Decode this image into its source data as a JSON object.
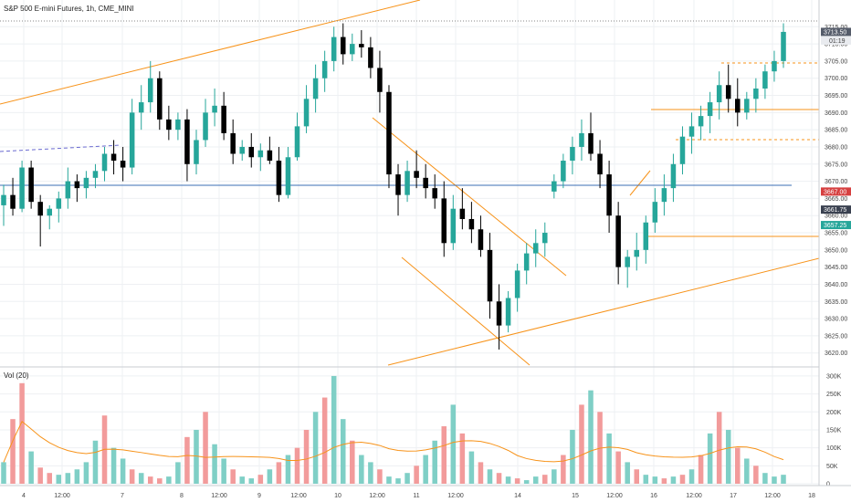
{
  "header": {
    "title": "S&P 500 E-mini Futures, 1h, CME_MINI",
    "volume_label": "Vol (20)"
  },
  "price_tags": {
    "last_price": "3713.50",
    "countdown": "01:19",
    "red_level": "3667.00",
    "dark_level": "3661.75",
    "green_level": "3657.25"
  },
  "colors": {
    "up": "#26a69a",
    "down": "#000000",
    "vol_up": "#7fcfc6",
    "vol_down": "#f29b9b",
    "trendline": "#f7931a",
    "hline_blue": "#3b6fb6",
    "red_tag": "#d64040",
    "green_tag": "#26a69a",
    "dark_tag": "#3a4150",
    "grid": "#eef0f3"
  },
  "chart_data": [
    {
      "type": "candlestick",
      "x_ticks": [
        "4",
        "12:00",
        "7",
        "8",
        "12:00",
        "9",
        "12:00",
        "10",
        "12:00",
        "11",
        "12:00",
        "14",
        "15",
        "12:00",
        "16",
        "12:00",
        "17",
        "12:00",
        "18"
      ],
      "y_ticks": [
        3620,
        3625,
        3630,
        3635,
        3640,
        3645,
        3650,
        3655,
        3660,
        3665,
        3670,
        3675,
        3680,
        3685,
        3690,
        3695,
        3700,
        3705,
        3710,
        3715
      ],
      "ylim": [
        3617,
        3718
      ],
      "candles": [
        [
          3663,
          3669,
          3657,
          3666
        ],
        [
          3666,
          3671,
          3660,
          3662
        ],
        [
          3662,
          3676,
          3661,
          3674
        ],
        [
          3674,
          3676,
          3662,
          3664
        ],
        [
          3664,
          3666,
          3651,
          3660
        ],
        [
          3660,
          3663,
          3656,
          3662
        ],
        [
          3662,
          3667,
          3658,
          3665
        ],
        [
          3665,
          3674,
          3662,
          3670
        ],
        [
          3670,
          3672,
          3664,
          3668
        ],
        [
          3668,
          3673,
          3665,
          3671
        ],
        [
          3671,
          3675,
          3668,
          3673
        ],
        [
          3673,
          3680,
          3670,
          3678
        ],
        [
          3678,
          3682,
          3672,
          3676
        ],
        [
          3676,
          3680,
          3670,
          3674
        ],
        [
          3674,
          3694,
          3672,
          3690
        ],
        [
          3690,
          3698,
          3685,
          3693
        ],
        [
          3693,
          3705,
          3690,
          3700
        ],
        [
          3700,
          3702,
          3685,
          3688
        ],
        [
          3688,
          3692,
          3682,
          3685
        ],
        [
          3685,
          3690,
          3682,
          3688
        ],
        [
          3688,
          3691,
          3670,
          3675
        ],
        [
          3675,
          3685,
          3672,
          3682
        ],
        [
          3682,
          3694,
          3680,
          3690
        ],
        [
          3690,
          3697,
          3686,
          3692
        ],
        [
          3692,
          3696,
          3682,
          3684
        ],
        [
          3684,
          3688,
          3675,
          3678
        ],
        [
          3678,
          3682,
          3676,
          3680
        ],
        [
          3680,
          3684,
          3674,
          3677
        ],
        [
          3677,
          3681,
          3673,
          3679
        ],
        [
          3679,
          3683,
          3675,
          3676
        ],
        [
          3676,
          3680,
          3664,
          3666
        ],
        [
          3666,
          3680,
          3665,
          3677
        ],
        [
          3677,
          3690,
          3676,
          3686
        ],
        [
          3686,
          3698,
          3684,
          3694
        ],
        [
          3694,
          3704,
          3690,
          3700
        ],
        [
          3700,
          3708,
          3696,
          3705
        ],
        [
          3705,
          3715,
          3702,
          3712
        ],
        [
          3712,
          3716,
          3704,
          3707
        ],
        [
          3707,
          3713,
          3705,
          3710
        ],
        [
          3710,
          3714,
          3706,
          3709
        ],
        [
          3709,
          3712,
          3700,
          3703
        ],
        [
          3703,
          3708,
          3690,
          3696
        ],
        [
          3696,
          3698,
          3668,
          3672
        ],
        [
          3672,
          3675,
          3660,
          3666
        ],
        [
          3666,
          3676,
          3664,
          3673
        ],
        [
          3673,
          3679,
          3668,
          3671
        ],
        [
          3671,
          3675,
          3665,
          3668
        ],
        [
          3668,
          3672,
          3662,
          3665
        ],
        [
          3665,
          3670,
          3648,
          3652
        ],
        [
          3652,
          3666,
          3650,
          3662
        ],
        [
          3662,
          3668,
          3656,
          3659
        ],
        [
          3659,
          3664,
          3652,
          3656
        ],
        [
          3656,
          3660,
          3648,
          3650
        ],
        [
          3650,
          3655,
          3630,
          3635
        ],
        [
          3635,
          3640,
          3621,
          3628
        ],
        [
          3628,
          3638,
          3626,
          3636
        ],
        [
          3636,
          3646,
          3632,
          3644
        ],
        [
          3644,
          3652,
          3640,
          3649
        ],
        [
          3649,
          3656,
          3645,
          3652
        ],
        [
          3652,
          3658,
          3648,
          3655
        ],
        [
          3667,
          3672,
          3665,
          3670
        ],
        [
          3670,
          3678,
          3668,
          3676
        ],
        [
          3676,
          3683,
          3672,
          3680
        ],
        [
          3680,
          3688,
          3676,
          3684
        ],
        [
          3684,
          3690,
          3676,
          3678
        ],
        [
          3678,
          3682,
          3668,
          3672
        ],
        [
          3672,
          3676,
          3655,
          3660
        ],
        [
          3660,
          3664,
          3640,
          3645
        ],
        [
          3645,
          3650,
          3639,
          3648
        ],
        [
          3648,
          3655,
          3644,
          3650
        ],
        [
          3650,
          3660,
          3646,
          3658
        ],
        [
          3658,
          3668,
          3655,
          3664
        ],
        [
          3664,
          3672,
          3660,
          3668
        ],
        [
          3668,
          3678,
          3664,
          3675
        ],
        [
          3675,
          3686,
          3672,
          3683
        ],
        [
          3683,
          3690,
          3678,
          3686
        ],
        [
          3686,
          3692,
          3682,
          3689
        ],
        [
          3689,
          3696,
          3684,
          3693
        ],
        [
          3693,
          3702,
          3688,
          3698
        ],
        [
          3698,
          3704,
          3690,
          3694
        ],
        [
          3694,
          3700,
          3686,
          3690
        ],
        [
          3690,
          3696,
          3688,
          3694
        ],
        [
          3694,
          3700,
          3690,
          3697
        ],
        [
          3697,
          3704,
          3694,
          3702
        ],
        [
          3702,
          3708,
          3699,
          3705
        ],
        [
          3705,
          3716,
          3703,
          3713.5
        ]
      ],
      "volume_ticks": [
        "0",
        "50K",
        "100K",
        "150K",
        "200K",
        "250K",
        "300K"
      ],
      "volume_max": 310000,
      "volumes": [
        [
          60000,
          1
        ],
        [
          180000,
          0
        ],
        [
          280000,
          0
        ],
        [
          90000,
          1
        ],
        [
          45000,
          0
        ],
        [
          30000,
          0
        ],
        [
          25000,
          1
        ],
        [
          30000,
          1
        ],
        [
          40000,
          1
        ],
        [
          60000,
          1
        ],
        [
          120000,
          1
        ],
        [
          190000,
          0
        ],
        [
          100000,
          1
        ],
        [
          70000,
          1
        ],
        [
          40000,
          0
        ],
        [
          30000,
          1
        ],
        [
          20000,
          0
        ],
        [
          15000,
          0
        ],
        [
          20000,
          1
        ],
        [
          60000,
          1
        ],
        [
          130000,
          0
        ],
        [
          150000,
          1
        ],
        [
          200000,
          0
        ],
        [
          110000,
          1
        ],
        [
          70000,
          1
        ],
        [
          40000,
          0
        ],
        [
          20000,
          1
        ],
        [
          15000,
          1
        ],
        [
          25000,
          0
        ],
        [
          40000,
          1
        ],
        [
          60000,
          0
        ],
        [
          80000,
          1
        ],
        [
          100000,
          0
        ],
        [
          150000,
          0
        ],
        [
          200000,
          1
        ],
        [
          240000,
          0
        ],
        [
          300000,
          1
        ],
        [
          180000,
          1
        ],
        [
          120000,
          0
        ],
        [
          80000,
          1
        ],
        [
          60000,
          1
        ],
        [
          40000,
          0
        ],
        [
          20000,
          1
        ],
        [
          15000,
          1
        ],
        [
          30000,
          1
        ],
        [
          50000,
          0
        ],
        [
          80000,
          1
        ],
        [
          120000,
          1
        ],
        [
          160000,
          0
        ],
        [
          220000,
          1
        ],
        [
          140000,
          0
        ],
        [
          90000,
          1
        ],
        [
          60000,
          0
        ],
        [
          40000,
          1
        ],
        [
          30000,
          0
        ],
        [
          20000,
          1
        ],
        [
          15000,
          0
        ],
        [
          10000,
          1
        ],
        [
          20000,
          1
        ],
        [
          25000,
          0
        ],
        [
          40000,
          1
        ],
        [
          80000,
          0
        ],
        [
          150000,
          1
        ],
        [
          220000,
          0
        ],
        [
          260000,
          1
        ],
        [
          200000,
          0
        ],
        [
          140000,
          1
        ],
        [
          90000,
          0
        ],
        [
          60000,
          1
        ],
        [
          40000,
          0
        ],
        [
          25000,
          1
        ],
        [
          20000,
          1
        ],
        [
          15000,
          0
        ],
        [
          20000,
          1
        ],
        [
          25000,
          0
        ],
        [
          40000,
          1
        ],
        [
          80000,
          0
        ],
        [
          140000,
          1
        ],
        [
          200000,
          0
        ],
        [
          150000,
          1
        ],
        [
          100000,
          0
        ],
        [
          70000,
          1
        ],
        [
          50000,
          0
        ],
        [
          30000,
          1
        ],
        [
          20000,
          1
        ],
        [
          25000,
          1
        ]
      ],
      "horizontal_levels": [
        3667.0,
        3689.5,
        3680.5,
        3702.5,
        3652.5
      ]
    }
  ]
}
